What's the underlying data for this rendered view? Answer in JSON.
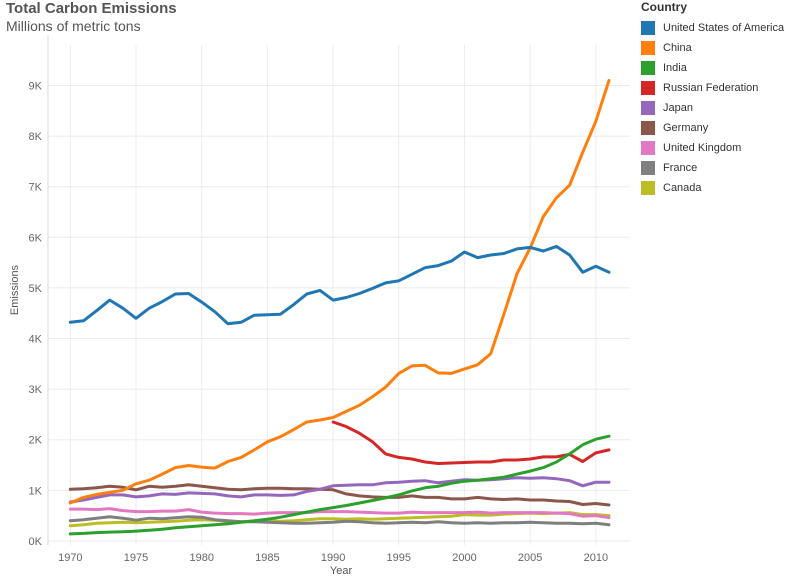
{
  "header": {
    "title": "Total Carbon Emissions",
    "subtitle": "Millions of metric tons"
  },
  "legend": {
    "title": "Country",
    "items": [
      {
        "label": "United States of America",
        "color": "#1f77b4"
      },
      {
        "label": "China",
        "color": "#ff7f0e"
      },
      {
        "label": "India",
        "color": "#2ca02c"
      },
      {
        "label": "Russian Federation",
        "color": "#d62728"
      },
      {
        "label": "Japan",
        "color": "#9467bd"
      },
      {
        "label": "Germany",
        "color": "#8c564b"
      },
      {
        "label": "United Kingdom",
        "color": "#e377c2"
      },
      {
        "label": "France",
        "color": "#7f7f7f"
      },
      {
        "label": "Canada",
        "color": "#bcbd22"
      }
    ]
  },
  "chart_data": {
    "type": "line",
    "title": "Total Carbon Emissions",
    "subtitle": "Millions of metric tons",
    "xlabel": "Year",
    "ylabel": "Emissions",
    "xlim": [
      1968.3,
      2012.6
    ],
    "ylim": [
      -80,
      9800
    ],
    "xticks": [
      1970,
      1975,
      1980,
      1985,
      1990,
      1995,
      2000,
      2005,
      2010
    ],
    "yticks": [
      {
        "value": 0,
        "label": "0K"
      },
      {
        "value": 1000,
        "label": "1K"
      },
      {
        "value": 2000,
        "label": "2K"
      },
      {
        "value": 3000,
        "label": "3K"
      },
      {
        "value": 4000,
        "label": "4K"
      },
      {
        "value": 5000,
        "label": "5K"
      },
      {
        "value": 6000,
        "label": "6K"
      },
      {
        "value": 7000,
        "label": "7K"
      },
      {
        "value": 8000,
        "label": "8K"
      },
      {
        "value": 9000,
        "label": "9K"
      }
    ],
    "grid": true,
    "legend_position": "right",
    "series": [
      {
        "name": "United States of America",
        "color": "#1f77b4",
        "start": 1970,
        "values": [
          4320,
          4350,
          4550,
          4760,
          4600,
          4400,
          4600,
          4730,
          4880,
          4890,
          4720,
          4530,
          4290,
          4320,
          4460,
          4470,
          4480,
          4670,
          4880,
          4950,
          4760,
          4810,
          4890,
          4990,
          5100,
          5140,
          5270,
          5400,
          5440,
          5530,
          5710,
          5600,
          5650,
          5680,
          5770,
          5800,
          5730,
          5820,
          5650,
          5310,
          5430,
          5310
        ]
      },
      {
        "name": "China",
        "color": "#ff7f0e",
        "start": 1970,
        "values": [
          750,
          860,
          920,
          960,
          1000,
          1130,
          1200,
          1320,
          1450,
          1490,
          1460,
          1440,
          1570,
          1650,
          1800,
          1960,
          2060,
          2200,
          2350,
          2390,
          2440,
          2560,
          2680,
          2850,
          3040,
          3310,
          3460,
          3470,
          3320,
          3310,
          3400,
          3480,
          3700,
          4480,
          5280,
          5790,
          6410,
          6780,
          7030,
          7680,
          8290,
          9100
        ]
      },
      {
        "name": "India",
        "color": "#2ca02c",
        "start": 1970,
        "values": [
          140,
          150,
          165,
          175,
          180,
          195,
          210,
          230,
          260,
          280,
          300,
          320,
          340,
          370,
          400,
          430,
          470,
          520,
          570,
          620,
          660,
          700,
          750,
          800,
          850,
          910,
          990,
          1050,
          1080,
          1140,
          1180,
          1200,
          1230,
          1260,
          1320,
          1380,
          1450,
          1560,
          1720,
          1900,
          2010,
          2070
        ]
      },
      {
        "name": "Russian Federation",
        "color": "#d62728",
        "start": 1990,
        "values": [
          2350,
          2260,
          2130,
          1960,
          1720,
          1650,
          1620,
          1560,
          1530,
          1540,
          1550,
          1560,
          1560,
          1600,
          1600,
          1620,
          1660,
          1660,
          1710,
          1570,
          1740,
          1800
        ]
      },
      {
        "name": "Japan",
        "color": "#9467bd",
        "start": 1970,
        "values": [
          770,
          810,
          860,
          910,
          910,
          870,
          890,
          930,
          920,
          950,
          940,
          930,
          890,
          870,
          910,
          910,
          900,
          910,
          980,
          1020,
          1090,
          1100,
          1110,
          1110,
          1150,
          1160,
          1180,
          1190,
          1150,
          1180,
          1210,
          1200,
          1210,
          1230,
          1250,
          1240,
          1250,
          1230,
          1190,
          1090,
          1160,
          1160
        ]
      },
      {
        "name": "Germany",
        "color": "#8c564b",
        "start": 1970,
        "values": [
          1020,
          1030,
          1050,
          1080,
          1060,
          1010,
          1080,
          1060,
          1080,
          1110,
          1080,
          1050,
          1020,
          1010,
          1030,
          1040,
          1040,
          1030,
          1030,
          1020,
          1010,
          930,
          890,
          870,
          860,
          860,
          890,
          860,
          860,
          830,
          830,
          860,
          830,
          820,
          830,
          810,
          810,
          790,
          780,
          720,
          740,
          710
        ]
      },
      {
        "name": "United Kingdom",
        "color": "#e377c2",
        "start": 1970,
        "values": [
          630,
          630,
          620,
          640,
          600,
          580,
          580,
          590,
          590,
          620,
          570,
          550,
          540,
          540,
          530,
          550,
          560,
          560,
          560,
          580,
          580,
          580,
          570,
          560,
          550,
          550,
          570,
          560,
          560,
          560,
          560,
          570,
          550,
          560,
          560,
          560,
          560,
          550,
          540,
          490,
          500,
          460
        ]
      },
      {
        "name": "France",
        "color": "#7f7f7f",
        "start": 1970,
        "values": [
          400,
          420,
          450,
          480,
          450,
          410,
          450,
          440,
          460,
          480,
          470,
          420,
          400,
          380,
          380,
          370,
          360,
          350,
          350,
          360,
          370,
          390,
          380,
          360,
          350,
          360,
          370,
          360,
          380,
          360,
          350,
          360,
          350,
          360,
          360,
          370,
          360,
          350,
          350,
          340,
          350,
          320
        ]
      },
      {
        "name": "Canada",
        "color": "#bcbd22",
        "start": 1970,
        "values": [
          300,
          320,
          350,
          360,
          370,
          360,
          370,
          380,
          390,
          410,
          420,
          410,
          390,
          380,
          390,
          400,
          390,
          400,
          420,
          440,
          440,
          430,
          440,
          430,
          440,
          450,
          460,
          470,
          480,
          490,
          520,
          510,
          510,
          530,
          540,
          550,
          540,
          550,
          560,
          520,
          520,
          500
        ]
      }
    ]
  }
}
